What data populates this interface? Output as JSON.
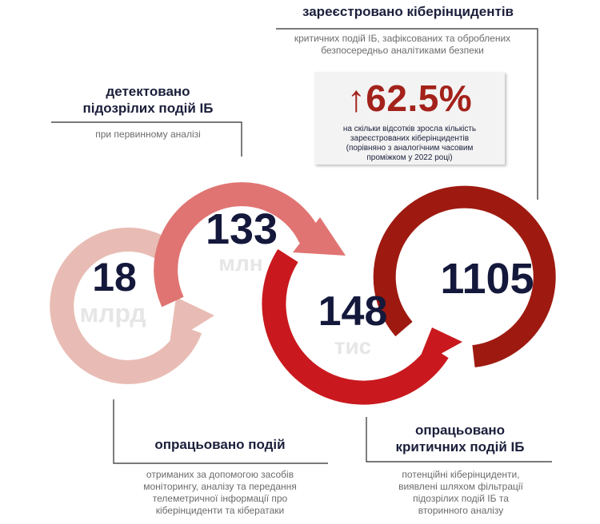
{
  "registered": {
    "title": "зареєстровано кіберінцидентів",
    "description": "критичних подій ІБ, зафіксованих та оброблених безпосередньо аналітиками безпеки"
  },
  "detected": {
    "title_line1": "детектовано",
    "title_line2": "підозрілих подій ІБ",
    "description": "при первинному аналізі"
  },
  "processed_events": {
    "title": "опрацьовано подій",
    "description_lines": [
      "отриманих за допомогою засобів",
      "моніторингу, аналізу та передання",
      "телеметричної інформації про",
      "кіберінциденти та кібератаки"
    ]
  },
  "processed_critical": {
    "title_line1": "опрацьовано",
    "title_line2": "критичних подій ІБ",
    "description_lines": [
      "потенційні кіберінциденти,",
      "виявлені шляхом фільтрації",
      "підозрілих подій ІБ та",
      "вторинного аналізу"
    ]
  },
  "stat": {
    "arrow": "↑",
    "value": "62.5%",
    "caption": "на скільки відсотків зросла кількість зареєстрованих кіберінцидентів",
    "sub": "(порівняно з аналогічним часовим проміжком у 2022 році)"
  },
  "circles": [
    {
      "value": "18",
      "unit": "млрд",
      "color": "#e8bcb4"
    },
    {
      "value": "133",
      "unit": "млн",
      "color": "#e07472"
    },
    {
      "value": "148",
      "unit": "тис",
      "color": "#c9191e"
    },
    {
      "value": "1105",
      "unit": "",
      "color": "#9e1a10"
    }
  ],
  "colors": {
    "unit_text": "#e6e6e6",
    "connector_line": "#2a2a2a"
  }
}
